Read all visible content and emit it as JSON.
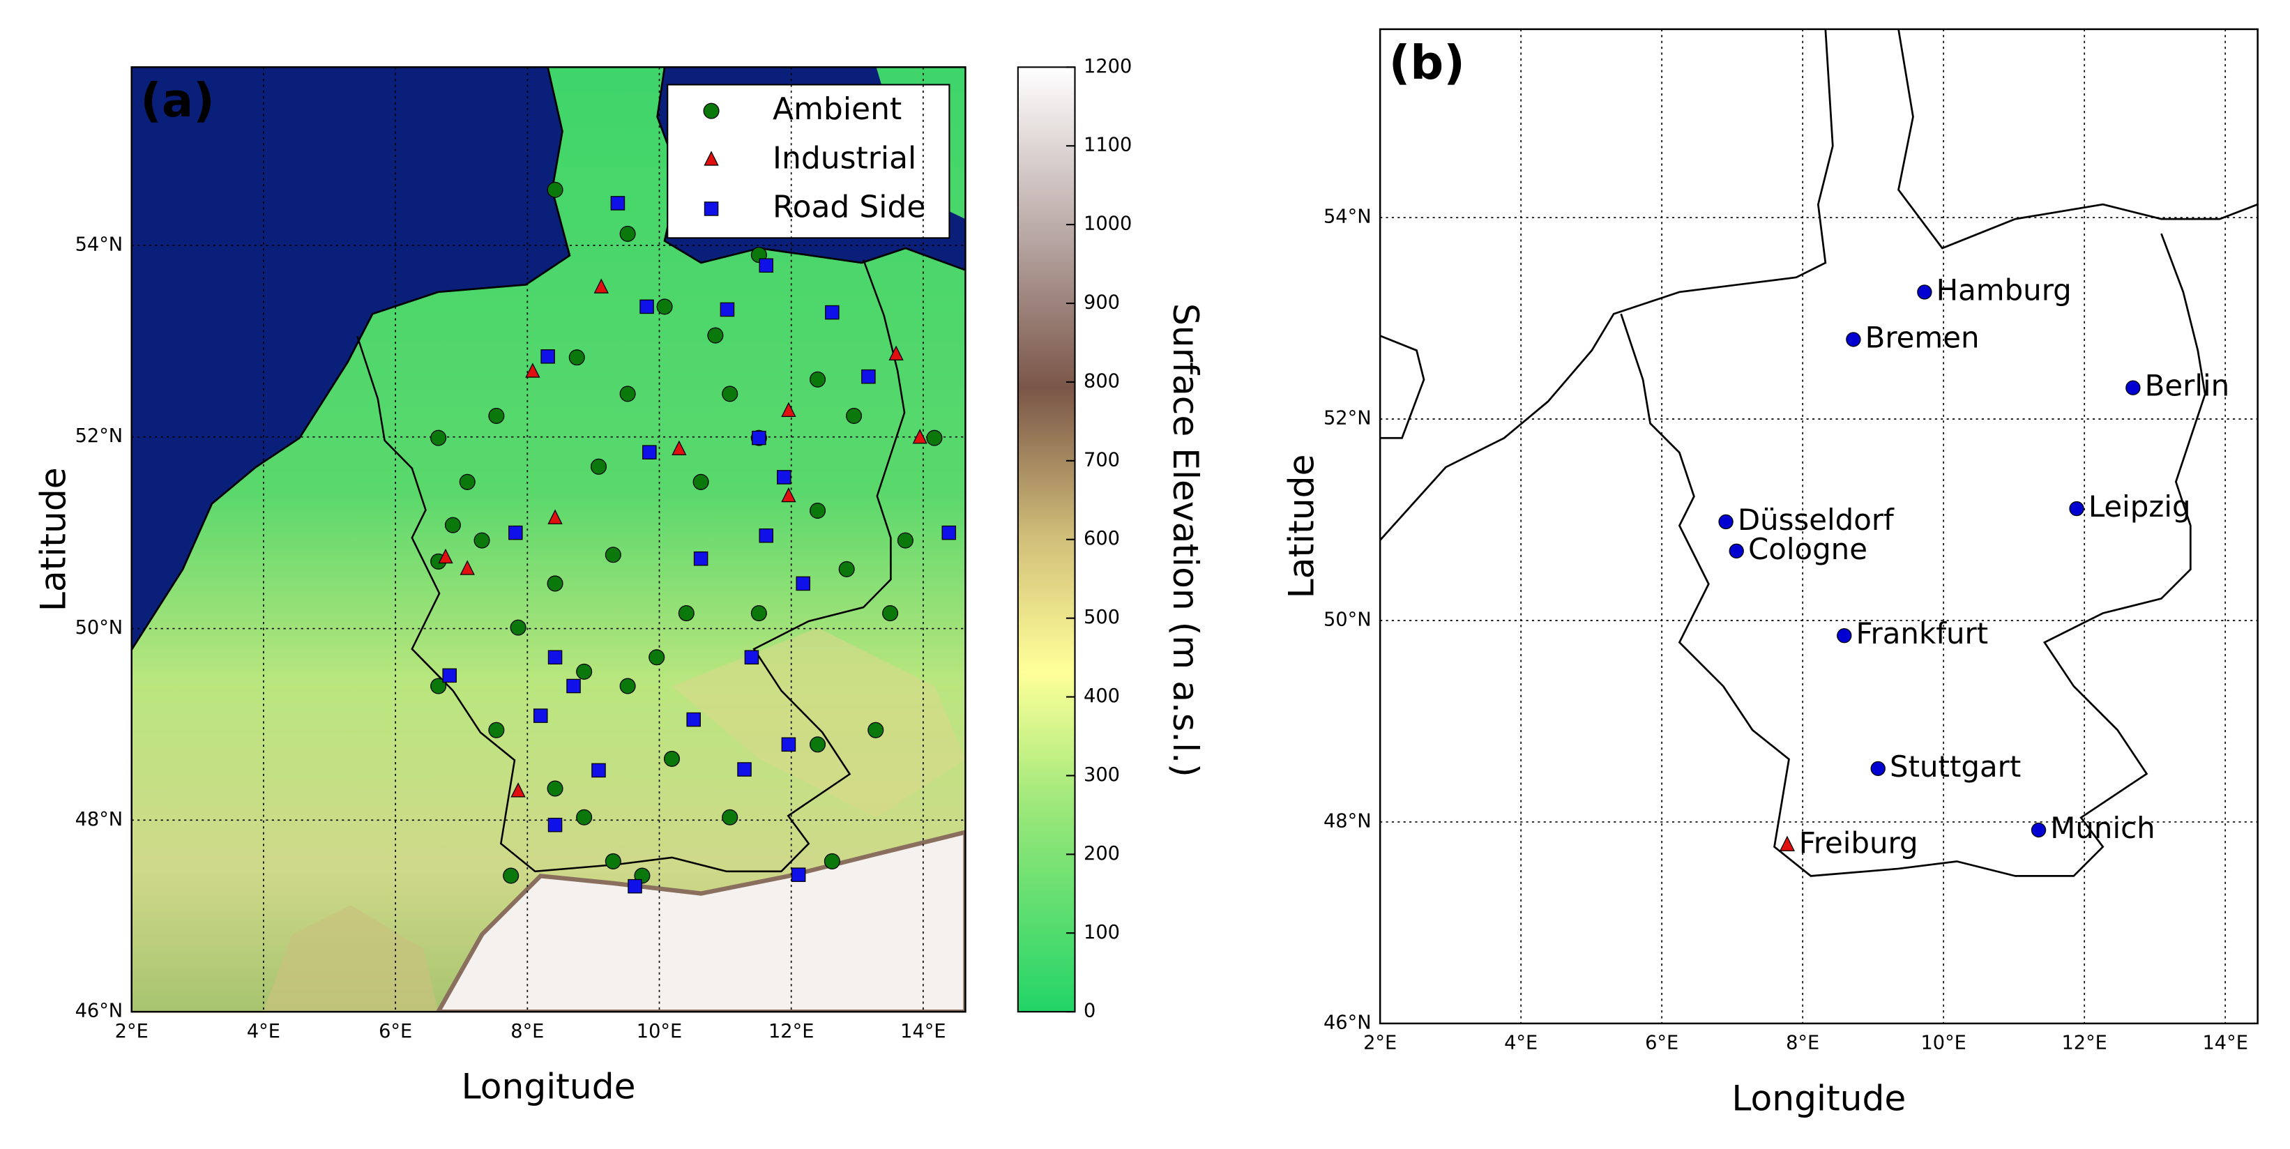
{
  "panels": [
    {
      "label": "(a)",
      "xlabel": "Longitude",
      "ylabel": "Latitude",
      "xlim": [
        2,
        14.64
      ],
      "ylim": [
        46,
        55.86
      ],
      "xticks": [
        {
          "value": 2,
          "label": "2°E"
        },
        {
          "value": 4,
          "label": "4°E"
        },
        {
          "value": 6,
          "label": "6°E"
        },
        {
          "value": 8,
          "label": "8°E"
        },
        {
          "value": 10,
          "label": "10°E"
        },
        {
          "value": 12,
          "label": "12°E"
        },
        {
          "value": 14,
          "label": "14°E"
        }
      ],
      "yticks": [
        {
          "value": 46,
          "label": "46°N"
        },
        {
          "value": 48,
          "label": "48°N"
        },
        {
          "value": 50,
          "label": "50°N"
        },
        {
          "value": 52,
          "label": "52°N"
        },
        {
          "value": 54,
          "label": "54°N"
        }
      ],
      "grid": true,
      "stations": [
        {
          "name": "Ambient",
          "color": "#0b780b",
          "marker": "circle",
          "lon": [
            8.42,
            9.52,
            10.08,
            11.51,
            12.4,
            12.95,
            10.85,
            11.07,
            9.52,
            8.75,
            7.53,
            7.09,
            6.87,
            6.65,
            7.31,
            7.86,
            8.86,
            9.52,
            10.41,
            11.51,
            12.84,
            13.73,
            7.53,
            8.42,
            8.86,
            9.74,
            11.07,
            12.4,
            13.28,
            10.19,
            7.75,
            9.3,
            12.62,
            9.08,
            10.63,
            12.4,
            9.96,
            6.65,
            14.17,
            11.51,
            13.5,
            6.65,
            9.3,
            8.42
          ],
          "lat": [
            54.58,
            54.12,
            53.36,
            53.9,
            52.6,
            52.22,
            53.06,
            52.45,
            52.45,
            52.83,
            52.22,
            51.53,
            51.08,
            50.7,
            50.92,
            50.01,
            49.55,
            49.4,
            50.16,
            50.16,
            50.62,
            50.92,
            48.94,
            48.33,
            48.03,
            47.42,
            48.03,
            48.79,
            48.94,
            48.64,
            47.42,
            47.57,
            47.57,
            51.69,
            51.53,
            51.23,
            49.7,
            51.99,
            51.99,
            51.99,
            50.16,
            49.4,
            50.77,
            50.47
          ]
        },
        {
          "name": "Industrial",
          "color": "#e01010",
          "marker": "triangle",
          "lon": [
            8.08,
            9.12,
            8.42,
            11.96,
            11.96,
            13.59,
            13.95,
            6.76,
            7.86,
            10.3,
            7.09
          ],
          "lat": [
            52.68,
            53.56,
            51.15,
            52.27,
            51.38,
            52.86,
            51.99,
            50.74,
            48.3,
            51.87,
            50.62
          ]
        },
        {
          "name": "Road Side",
          "color": "#1010e8",
          "marker": "square",
          "lon": [
            9.37,
            11.62,
            12.62,
            13.17,
            8.31,
            9.81,
            11.03,
            9.85,
            11.51,
            11.89,
            7.82,
            10.63,
            11.62,
            12.18,
            6.82,
            8.42,
            8.2,
            8.7,
            10.52,
            11.4,
            11.29,
            11.96,
            8.42,
            9.63,
            12.11,
            14.39,
            9.08
          ],
          "lat": [
            54.44,
            53.79,
            53.3,
            52.63,
            52.84,
            53.36,
            53.33,
            51.84,
            51.99,
            51.58,
            51.0,
            50.73,
            50.97,
            50.47,
            49.51,
            49.7,
            49.09,
            49.4,
            49.05,
            49.7,
            48.53,
            48.79,
            47.95,
            47.31,
            47.43,
            51.0,
            48.52
          ]
        }
      ],
      "colorbar": {
        "label": "Surface Elevation (m  a.s.l.)",
        "lim": [
          0,
          1200
        ],
        "ticks": [
          0,
          100,
          200,
          300,
          400,
          500,
          600,
          700,
          800,
          900,
          1000,
          1100,
          1200
        ]
      }
    },
    {
      "label": "(b)",
      "xlabel": "Longitude",
      "ylabel": "Latitude",
      "xlim": [
        2,
        14.46
      ],
      "ylim": [
        46,
        55.87
      ],
      "xticks": [
        {
          "value": 2,
          "label": "2°E"
        },
        {
          "value": 4,
          "label": "4°E"
        },
        {
          "value": 6,
          "label": "6°E"
        },
        {
          "value": 8,
          "label": "8°E"
        },
        {
          "value": 10,
          "label": "10°E"
        },
        {
          "value": 12,
          "label": "12°E"
        },
        {
          "value": 14,
          "label": "14°E"
        }
      ],
      "yticks": [
        {
          "value": 46,
          "label": "46°N"
        },
        {
          "value": 48,
          "label": "48°N"
        },
        {
          "value": 50,
          "label": "50°N"
        },
        {
          "value": 52,
          "label": "52°N"
        },
        {
          "value": 54,
          "label": "54°N"
        }
      ],
      "grid": true,
      "cities": [
        {
          "name": "Hamburg",
          "lon": 9.73,
          "lat": 53.26,
          "color": "#0000d0",
          "marker": "circle"
        },
        {
          "name": "Bremen",
          "lon": 8.72,
          "lat": 52.79,
          "color": "#0000d0",
          "marker": "circle"
        },
        {
          "name": "Berlin",
          "lon": 12.69,
          "lat": 52.31,
          "color": "#0000d0",
          "marker": "circle"
        },
        {
          "name": "Leipzig",
          "lon": 11.89,
          "lat": 51.11,
          "color": "#0000d0",
          "marker": "circle"
        },
        {
          "name": "Düsseldorf",
          "lon": 6.91,
          "lat": 50.98,
          "color": "#0000d0",
          "marker": "circle"
        },
        {
          "name": "Cologne",
          "lon": 7.06,
          "lat": 50.69,
          "color": "#0000d0",
          "marker": "circle"
        },
        {
          "name": "Frankfurt",
          "lon": 8.59,
          "lat": 49.85,
          "color": "#0000d0",
          "marker": "circle"
        },
        {
          "name": "Stuttgart",
          "lon": 9.07,
          "lat": 48.53,
          "color": "#0000d0",
          "marker": "circle"
        },
        {
          "name": "Munich",
          "lon": 11.35,
          "lat": 47.92,
          "color": "#0000d0",
          "marker": "circle"
        },
        {
          "name": "Freiburg",
          "lon": 7.78,
          "lat": 47.77,
          "color": "#e01010",
          "marker": "triangle"
        }
      ]
    }
  ]
}
